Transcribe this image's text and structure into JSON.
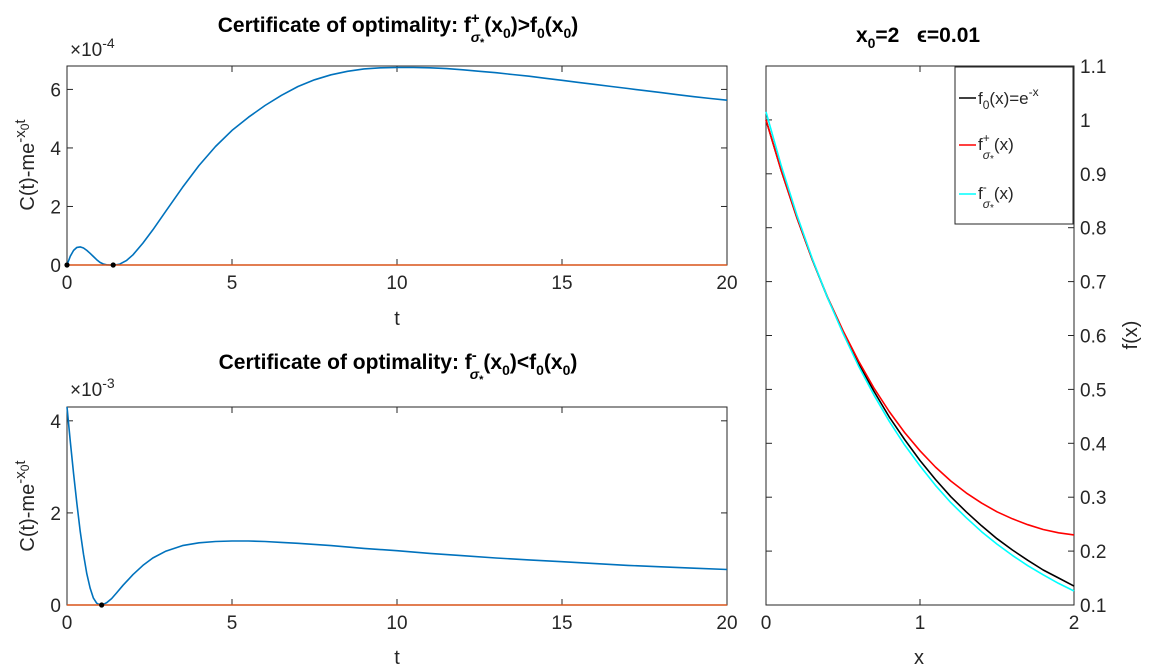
{
  "chart_data": [
    {
      "type": "line",
      "title": "Certificate of optimality: f⁺σ*(x₀)>f₀(x₀)",
      "title_parts": {
        "lead": "Certificate of optimality: f",
        "sup": "+",
        "sub": "σ",
        "subsub": "*",
        "mid": "(x",
        "x0sub": "0",
        "rel": ")>f",
        "f0sub": "0",
        "tail": "(x",
        "tail0": "0",
        "close": ")"
      },
      "xlabel": "t",
      "ylabel": "C(t)-me^{-x_0 t}",
      "ylabel_parts": {
        "lead": "C(t)-me",
        "sup": "-x",
        "supsub": "0",
        "tail": "t"
      },
      "multiplier": {
        "base": "×10",
        "exp": "-4"
      },
      "xlim": [
        0,
        20
      ],
      "ylim": [
        0,
        6.8
      ],
      "xticks": [
        0,
        5,
        10,
        15,
        20
      ],
      "yticks": [
        0,
        2,
        4,
        6
      ],
      "series": [
        {
          "color": "#0072BD",
          "x": [
            0,
            0.1,
            0.2,
            0.3,
            0.4,
            0.5,
            0.6,
            0.7,
            0.8,
            0.9,
            1.0,
            1.1,
            1.2,
            1.3,
            1.45,
            1.6,
            1.8,
            2.0,
            2.3,
            2.6,
            3.0,
            3.5,
            4.0,
            4.5,
            5.0,
            5.5,
            6.0,
            6.5,
            7.0,
            7.5,
            8.0,
            8.5,
            9.0,
            9.5,
            10.0,
            10.5,
            11.0,
            11.5,
            12.0,
            12.5,
            13.0,
            13.5,
            14.0,
            14.5,
            15.0,
            15.5,
            16.0,
            16.5,
            17.0,
            17.5,
            18.0,
            18.5,
            19.0,
            19.5,
            20.0
          ],
          "y": [
            0,
            0.3,
            0.5,
            0.6,
            0.62,
            0.58,
            0.5,
            0.4,
            0.29,
            0.18,
            0.09,
            0.035,
            0.008,
            0.0,
            0.0,
            0.03,
            0.15,
            0.35,
            0.75,
            1.2,
            1.85,
            2.65,
            3.4,
            4.05,
            4.6,
            5.05,
            5.45,
            5.8,
            6.1,
            6.33,
            6.5,
            6.62,
            6.7,
            6.74,
            6.75,
            6.75,
            6.74,
            6.71,
            6.67,
            6.62,
            6.57,
            6.51,
            6.45,
            6.38,
            6.31,
            6.24,
            6.17,
            6.1,
            6.03,
            5.96,
            5.89,
            5.82,
            5.75,
            5.69,
            5.63
          ]
        },
        {
          "color": "#D95319",
          "x": [
            0,
            20
          ],
          "y": [
            0,
            0
          ]
        }
      ],
      "markers": [
        {
          "x": 0,
          "y": 0
        },
        {
          "x": 1.4,
          "y": 0
        }
      ]
    },
    {
      "type": "line",
      "title": "Certificate of optimality: f⁻σ*(x₀)<f₀(x₀)",
      "title_parts": {
        "lead": "Certificate of optimality: f",
        "sup": "-",
        "sub": "σ",
        "subsub": "*",
        "mid": "(x",
        "x0sub": "0",
        "rel": ")<f",
        "f0sub": "0",
        "tail": "(x",
        "tail0": "0",
        "close": ")"
      },
      "xlabel": "t",
      "ylabel": "C(t)-me^{-x_0 t}",
      "ylabel_parts": {
        "lead": "C(t)-me",
        "sup": "-x",
        "supsub": "0",
        "tail": "t"
      },
      "multiplier": {
        "base": "×10",
        "exp": "-3"
      },
      "xlim": [
        0,
        20
      ],
      "ylim": [
        0,
        4.3
      ],
      "xticks": [
        0,
        5,
        10,
        15,
        20
      ],
      "yticks": [
        0,
        2,
        4
      ],
      "series": [
        {
          "color": "#0072BD",
          "x": [
            0,
            0.1,
            0.2,
            0.3,
            0.4,
            0.5,
            0.6,
            0.7,
            0.8,
            0.9,
            1.0,
            1.1,
            1.2,
            1.35,
            1.5,
            1.7,
            2.0,
            2.3,
            2.6,
            3.0,
            3.5,
            4.0,
            4.5,
            5.0,
            5.5,
            6.0,
            6.5,
            7.0,
            8.0,
            9.0,
            10.0,
            11.0,
            12.0,
            13.0,
            14.0,
            15.0,
            16.0,
            17.0,
            18.0,
            19.0,
            20.0
          ],
          "y": [
            4.3,
            3.55,
            2.85,
            2.2,
            1.6,
            1.1,
            0.68,
            0.37,
            0.15,
            0.04,
            0.0,
            0.01,
            0.05,
            0.14,
            0.26,
            0.43,
            0.66,
            0.86,
            1.02,
            1.17,
            1.29,
            1.35,
            1.38,
            1.39,
            1.39,
            1.38,
            1.36,
            1.34,
            1.29,
            1.23,
            1.18,
            1.12,
            1.07,
            1.02,
            0.98,
            0.94,
            0.9,
            0.86,
            0.83,
            0.8,
            0.77
          ]
        },
        {
          "color": "#D95319",
          "x": [
            0,
            20
          ],
          "y": [
            0,
            0
          ]
        }
      ],
      "markers": [
        {
          "x": 1.05,
          "y": 0
        }
      ]
    },
    {
      "type": "line",
      "title": "x₀=2   ϵ=0.01",
      "title_parts": {
        "lead": "x",
        "x0sub": "0",
        "rest": "=2   ϵ=0.01"
      },
      "xlabel": "x",
      "ylabel": "f(x)",
      "xlim": [
        0,
        2
      ],
      "ylim": [
        0.1,
        1.1
      ],
      "xticks": [
        0,
        1,
        2
      ],
      "yticks": [
        0.1,
        0.2,
        0.3,
        0.4,
        0.5,
        0.6,
        0.7,
        0.8,
        0.9,
        1,
        1.1
      ],
      "legend_position": "top-right",
      "series": [
        {
          "name": "f₀(x)=e⁻ˣ",
          "color": "#000000",
          "legend_parts": {
            "lead": "f",
            "sub": "0",
            "mid": "(x)=e",
            "sup": "-x"
          },
          "x": [
            0,
            0.1,
            0.2,
            0.3,
            0.4,
            0.5,
            0.6,
            0.7,
            0.8,
            0.9,
            1.0,
            1.1,
            1.2,
            1.3,
            1.4,
            1.5,
            1.6,
            1.7,
            1.8,
            1.9,
            2.0
          ],
          "y": [
            1.0,
            0.905,
            0.819,
            0.741,
            0.67,
            0.607,
            0.549,
            0.497,
            0.449,
            0.407,
            0.368,
            0.333,
            0.301,
            0.273,
            0.247,
            0.223,
            0.202,
            0.183,
            0.165,
            0.15,
            0.135
          ]
        },
        {
          "name": "f⁺σ*(x)",
          "color": "#FF0000",
          "legend_parts": {
            "lead": "f",
            "sup": "+",
            "sub": "σ",
            "subsub": "*",
            "tail": "(x)"
          },
          "x": [
            0,
            0.1,
            0.2,
            0.3,
            0.4,
            0.5,
            0.6,
            0.7,
            0.8,
            0.9,
            1.0,
            1.1,
            1.2,
            1.3,
            1.4,
            1.5,
            1.6,
            1.7,
            1.8,
            1.9,
            2.0
          ],
          "y": [
            1.0,
            0.905,
            0.819,
            0.741,
            0.671,
            0.609,
            0.553,
            0.503,
            0.459,
            0.42,
            0.386,
            0.356,
            0.33,
            0.308,
            0.289,
            0.273,
            0.26,
            0.249,
            0.24,
            0.234,
            0.23
          ]
        },
        {
          "name": "f⁻σ*(x)",
          "color": "#00FFFF",
          "legend_parts": {
            "lead": "f",
            "sup": "-",
            "sub": "σ",
            "subsub": "*",
            "tail": "(x)"
          },
          "x": [
            0,
            0.1,
            0.2,
            0.3,
            0.4,
            0.5,
            0.6,
            0.7,
            0.8,
            0.9,
            1.0,
            1.1,
            1.2,
            1.3,
            1.4,
            1.5,
            1.6,
            1.7,
            1.8,
            1.9,
            2.0
          ],
          "y": [
            1.015,
            0.914,
            0.824,
            0.743,
            0.67,
            0.604,
            0.544,
            0.49,
            0.441,
            0.397,
            0.358,
            0.322,
            0.29,
            0.262,
            0.236,
            0.213,
            0.192,
            0.173,
            0.156,
            0.14,
            0.126
          ]
        }
      ]
    }
  ]
}
